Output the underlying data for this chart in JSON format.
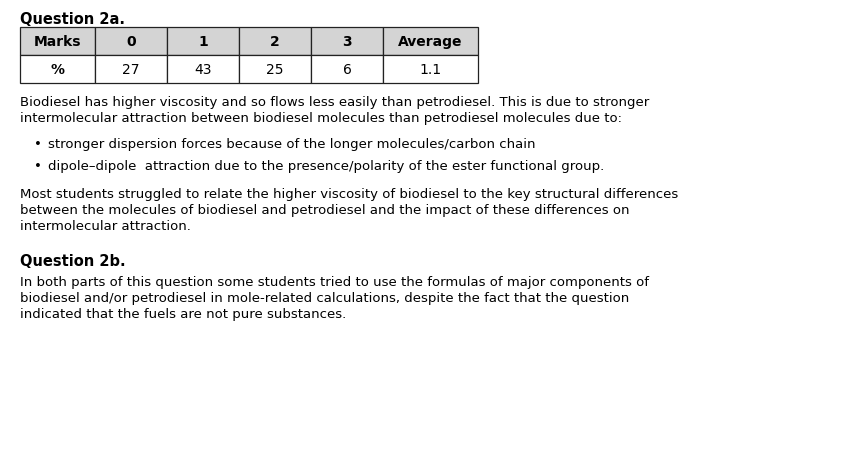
{
  "title_q2a": "Question 2a.",
  "title_q2b": "Question 2b.",
  "table_headers": [
    "Marks",
    "0",
    "1",
    "2",
    "3",
    "Average"
  ],
  "table_row_label": "%",
  "table_values": [
    "27",
    "43",
    "25",
    "6",
    "1.1"
  ],
  "header_bg": "#d4d4d4",
  "body_bg": "#ffffff",
  "border_color": "#222222",
  "text_color": "#000000",
  "para1_line1": "Biodiesel has higher viscosity and so flows less easily than petrodiesel. This is due to stronger",
  "para1_line2": "intermolecular attraction between biodiesel molecules than petrodiesel molecules due to:",
  "bullet1": "stronger dispersion forces because of the longer molecules/carbon chain",
  "bullet2": "dipole–dipole  attraction due to the presence/polarity of the ester functional group.",
  "para2_line1": "Most students struggled to relate the higher viscosity of biodiesel to the key structural differences",
  "para2_line2": "between the molecules of biodiesel and petrodiesel and the impact of these differences on",
  "para2_line3": "intermolecular attraction.",
  "para3_line1": "In both parts of this question some students tried to use the formulas of major components of",
  "para3_line2": "biodiesel and/or petrodiesel in mole-related calculations, despite the fact that the question",
  "para3_line3": "indicated that the fuels are not pure substances.",
  "bg_color": "#ffffff",
  "font_size_title": 10.5,
  "font_size_body": 9.5,
  "font_size_table": 10.0,
  "fig_width": 8.66,
  "fig_height": 4.6,
  "dpi": 100
}
